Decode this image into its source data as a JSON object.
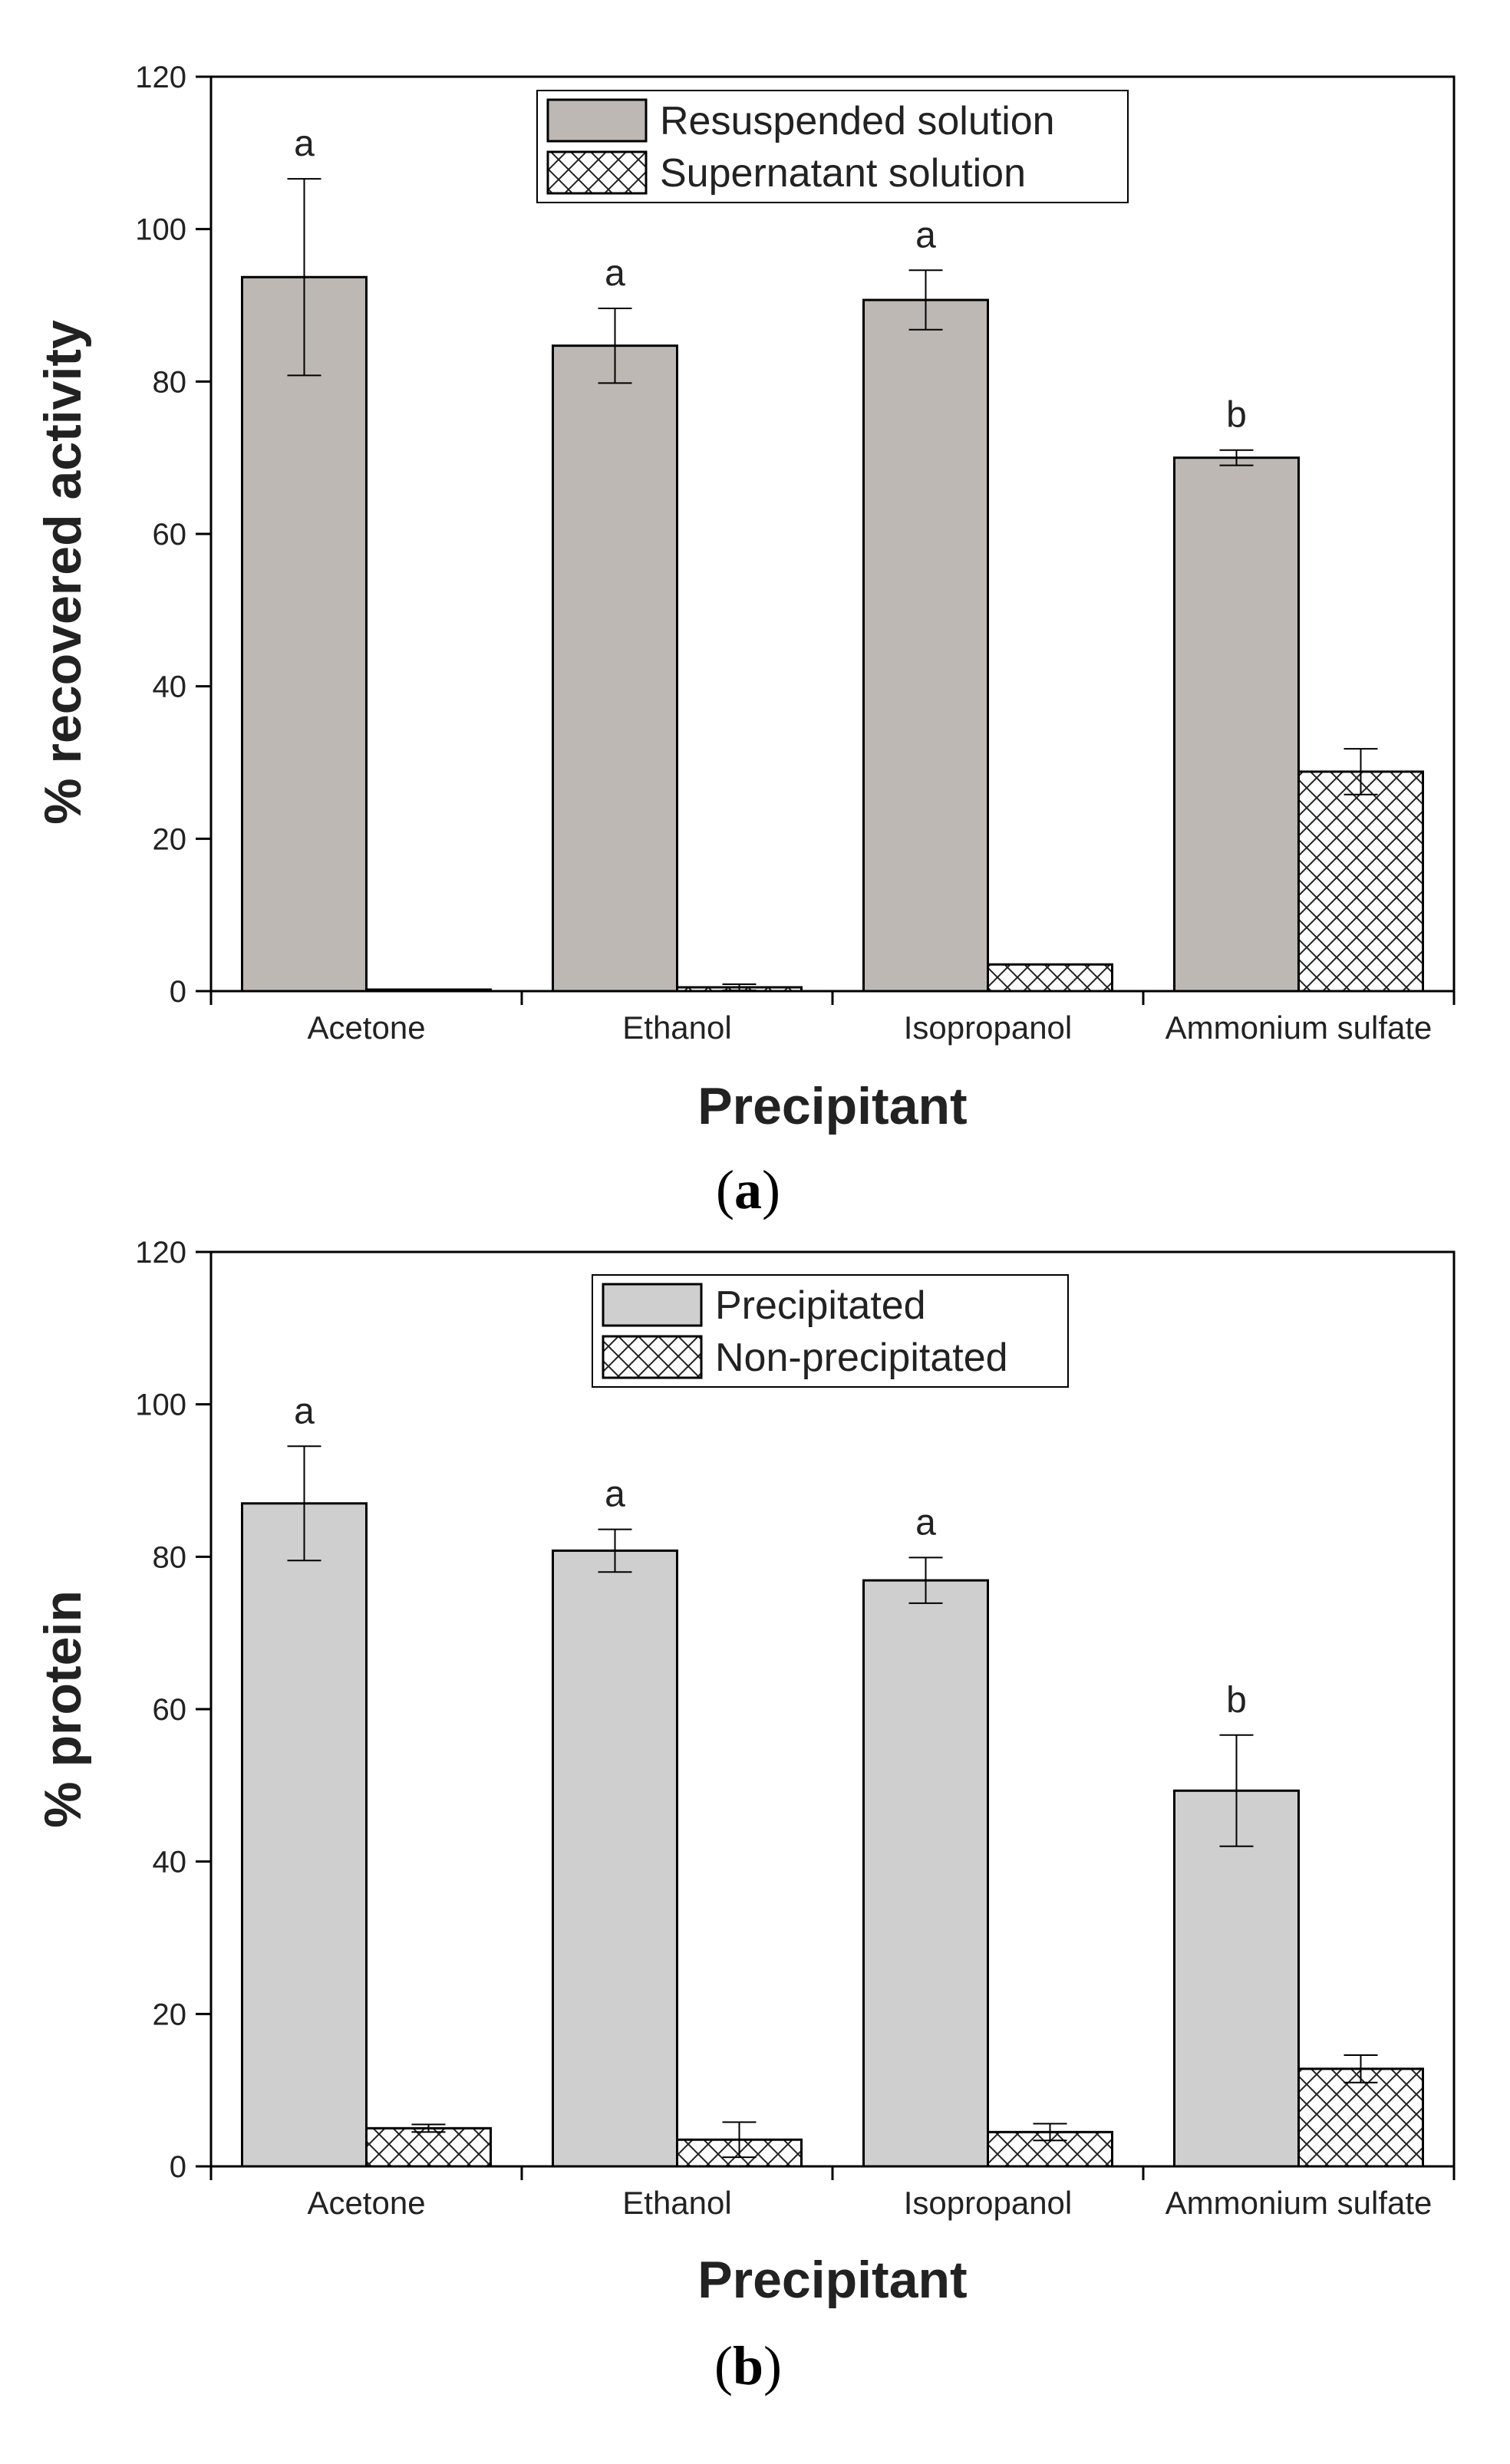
{
  "chart_data": [
    {
      "type": "bar",
      "panel_label": "(a)",
      "panel_letter": "a",
      "title": "",
      "xlabel": "Precipitant",
      "ylabel": "% recovered activity",
      "ylim": [
        0,
        120
      ],
      "yticks": [
        0,
        20,
        40,
        60,
        80,
        100,
        120
      ],
      "categories": [
        "Acetone",
        "Ethanol",
        "Isopropanol",
        "Ammonium sulfate"
      ],
      "legend_position": "top-center",
      "series": [
        {
          "name": "Resuspended solution",
          "fill": "solid",
          "color": "#bdb8b3",
          "values": [
            93.7,
            84.7,
            90.7,
            70.0
          ],
          "errors": [
            12.9,
            4.9,
            3.9,
            1.0
          ],
          "sig_letters": [
            "a",
            "a",
            "a",
            "b"
          ]
        },
        {
          "name": "Supernatant solution",
          "fill": "crosshatch",
          "color": "#ffffff",
          "values": [
            0.2,
            0.5,
            3.5,
            28.8
          ],
          "errors": [
            0.0,
            0.4,
            0.0,
            3.0
          ],
          "sig_letters": [
            "",
            "",
            "",
            ""
          ]
        }
      ]
    },
    {
      "type": "bar",
      "panel_label": "(b)",
      "panel_letter": "b",
      "title": "",
      "xlabel": "Precipitant",
      "ylabel": "% protein",
      "ylim": [
        0,
        120
      ],
      "yticks": [
        0,
        20,
        40,
        60,
        80,
        100,
        120
      ],
      "categories": [
        "Acetone",
        "Ethanol",
        "Isopropanol",
        "Ammonium sulfate"
      ],
      "legend_position": "top-center",
      "series": [
        {
          "name": "Precipitated",
          "fill": "solid",
          "color": "#cfcfcf",
          "values": [
            87.0,
            80.8,
            76.9,
            49.3
          ],
          "errors": [
            7.5,
            2.8,
            3.0,
            7.3
          ],
          "sig_letters": [
            "a",
            "a",
            "a",
            "b"
          ]
        },
        {
          "name": "Non-precipitated",
          "fill": "crosshatch",
          "color": "#ffffff",
          "values": [
            5.0,
            3.5,
            4.5,
            12.8
          ],
          "errors": [
            0.5,
            2.3,
            1.1,
            1.8
          ],
          "sig_letters": [
            "",
            "",
            "",
            ""
          ]
        }
      ]
    }
  ]
}
